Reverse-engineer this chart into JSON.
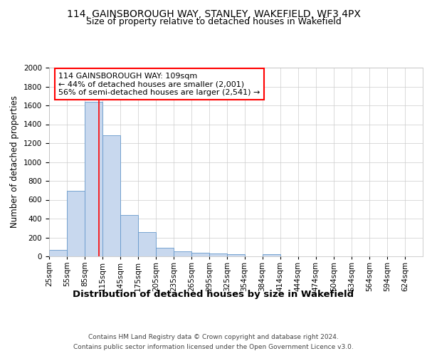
{
  "title": "114, GAINSBOROUGH WAY, STANLEY, WAKEFIELD, WF3 4PX",
  "subtitle": "Size of property relative to detached houses in Wakefield",
  "xlabel": "Distribution of detached houses by size in Wakefield",
  "ylabel": "Number of detached properties",
  "footer_line1": "Contains HM Land Registry data © Crown copyright and database right 2024.",
  "footer_line2": "Contains public sector information licensed under the Open Government Licence v3.0.",
  "annotation_line1": "114 GAINSBOROUGH WAY: 109sqm",
  "annotation_line2": "← 44% of detached houses are smaller (2,001)",
  "annotation_line3": "56% of semi-detached houses are larger (2,541) →",
  "bar_color": "#c8d8ee",
  "bar_edge_color": "#6699cc",
  "red_line_x": 109,
  "bin_left_edges": [
    25,
    55,
    85,
    115,
    145,
    175,
    205,
    235,
    265,
    295,
    325,
    354,
    384,
    414,
    444,
    474,
    504,
    534,
    564,
    594,
    624
  ],
  "bin_width": 30,
  "categories": [
    "25sqm",
    "55sqm",
    "85sqm",
    "115sqm",
    "145sqm",
    "175sqm",
    "205sqm",
    "235sqm",
    "265sqm",
    "295sqm",
    "325sqm",
    "354sqm",
    "384sqm",
    "414sqm",
    "444sqm",
    "474sqm",
    "504sqm",
    "534sqm",
    "564sqm",
    "594sqm",
    "624sqm"
  ],
  "values": [
    65,
    695,
    1635,
    1285,
    440,
    255,
    90,
    55,
    40,
    30,
    20,
    0,
    20,
    0,
    0,
    0,
    0,
    0,
    0,
    0,
    0
  ],
  "ylim": [
    0,
    2000
  ],
  "yticks": [
    0,
    200,
    400,
    600,
    800,
    1000,
    1200,
    1400,
    1600,
    1800,
    2000
  ],
  "background_color": "#ffffff",
  "grid_color": "#cccccc",
  "title_fontsize": 10,
  "subtitle_fontsize": 9,
  "ylabel_fontsize": 8.5,
  "xlabel_fontsize": 9.5,
  "tick_fontsize": 7.5,
  "annotation_fontsize": 8,
  "footer_fontsize": 6.5
}
